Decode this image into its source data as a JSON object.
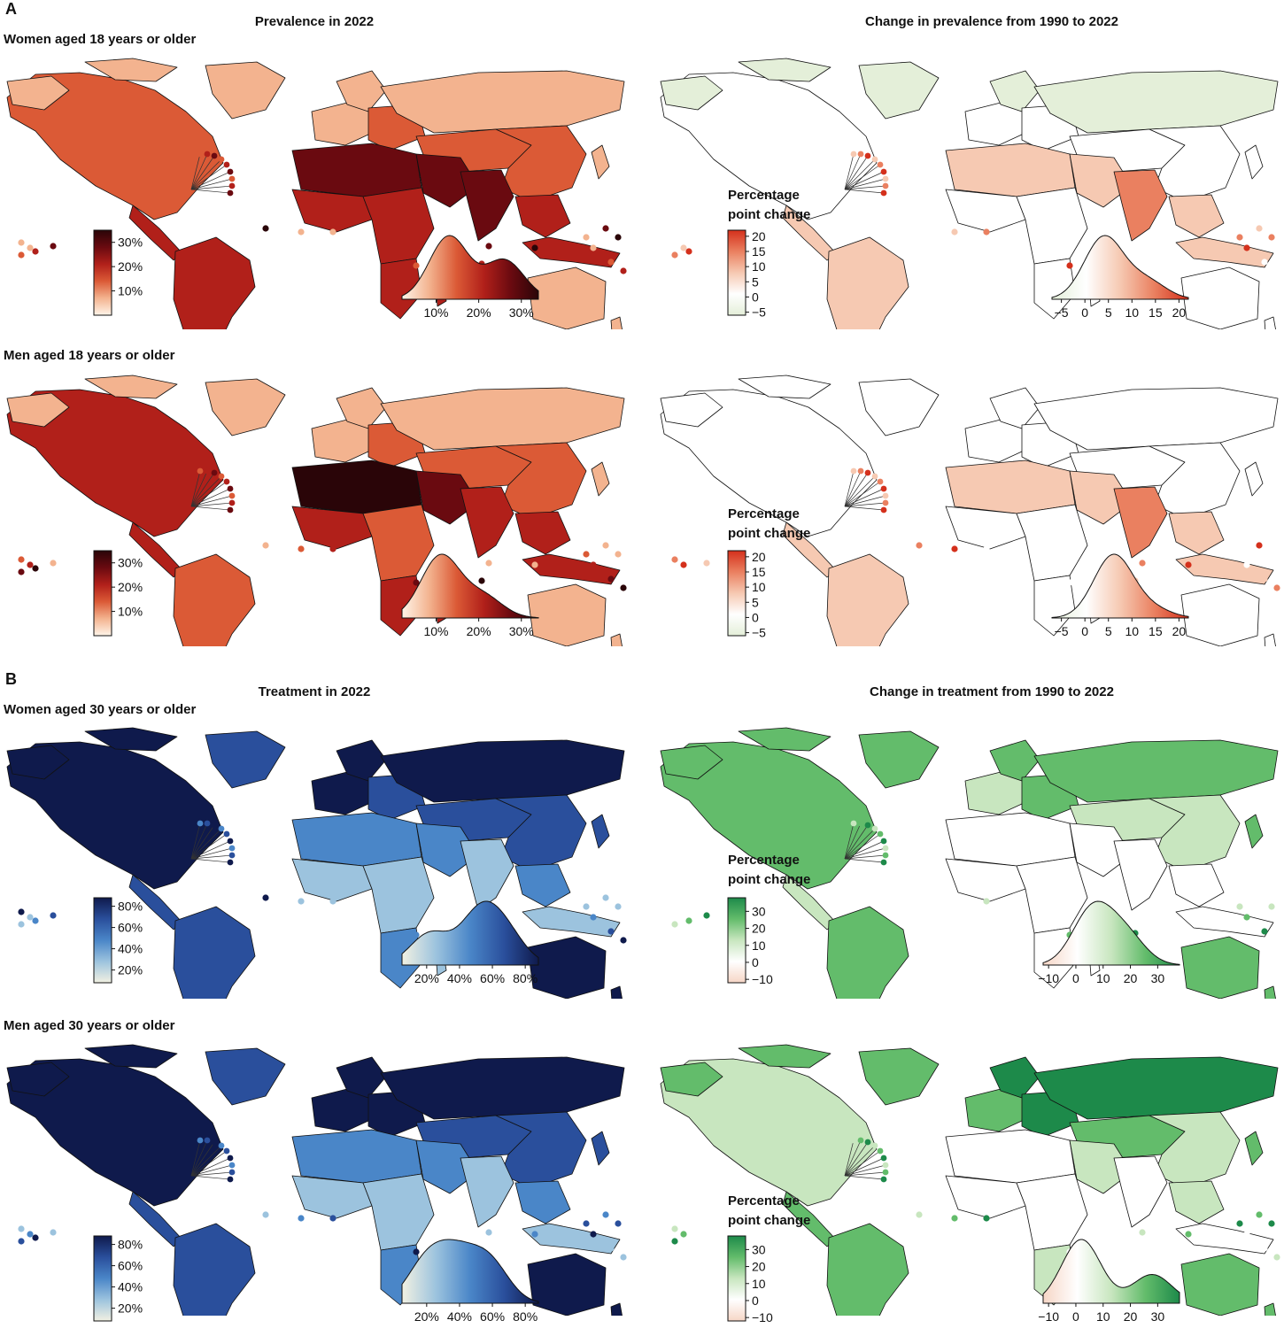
{
  "figure": {
    "panels": [
      {
        "letter": "A",
        "columns": [
          {
            "title": "Prevalence in 2022"
          },
          {
            "title": "Change in prevalence from 1990 to 2022"
          }
        ],
        "rows": [
          {
            "label": "Women aged 18 years or older"
          },
          {
            "label": "Men aged 18 years or older"
          }
        ]
      },
      {
        "letter": "B",
        "columns": [
          {
            "title": "Treatment in 2022"
          },
          {
            "title": "Change in treatment from 1990 to 2022"
          }
        ],
        "rows": [
          {
            "label": "Women aged 30 years or older"
          },
          {
            "label": "Men aged 30 years or older"
          }
        ]
      }
    ],
    "legend_change_title": "Percentage point change"
  },
  "colors": {
    "prevalence": [
      "#fff5e9",
      "#f3b38f",
      "#db5a36",
      "#b1201a",
      "#6a0a10",
      "#2a0508"
    ],
    "prevalence_change": [
      "#e4efd9",
      "#ffffff",
      "#f6c9b2",
      "#ea8060",
      "#d4301c"
    ],
    "treatment": [
      "#f2f1e2",
      "#9cc3de",
      "#4a86c8",
      "#2a4f9c",
      "#0f1a4c"
    ],
    "treatment_change": [
      "#f6d6c6",
      "#ffffff",
      "#c8e6bf",
      "#63bc6b",
      "#1d8a4a"
    ]
  },
  "chart_data": [
    {
      "type": "heatmap",
      "title": "Prevalence in 2022",
      "row_label": "Women aged 18 years or older",
      "legend": {
        "ticks": [
          "10%",
          "20%",
          "30%"
        ],
        "range": [
          0,
          35
        ]
      },
      "density": {
        "x_ticks": [
          "10%",
          "20%",
          "30%"
        ],
        "range": [
          2,
          34
        ],
        "peaks": [
          {
            "x": 13,
            "h": 1.0
          },
          {
            "x": 26,
            "h": 0.62
          }
        ]
      }
    },
    {
      "type": "heatmap",
      "title": "Change in prevalence from 1990 to 2022",
      "row_label": "Women aged 18 years or older",
      "legend": {
        "title": "Percentage point change",
        "ticks": [
          "20",
          "15",
          "10",
          "5",
          "0",
          "−5"
        ],
        "range": [
          -6,
          22
        ]
      },
      "density": {
        "x_ticks": [
          "−5",
          "0",
          "5",
          "10",
          "15",
          "20"
        ],
        "range": [
          -7,
          22
        ],
        "peaks": [
          {
            "x": 4,
            "h": 1.0
          },
          {
            "x": 13,
            "h": 0.3
          }
        ]
      }
    },
    {
      "type": "heatmap",
      "title": "Prevalence in 2022",
      "row_label": "Men aged 18 years or older",
      "legend": {
        "ticks": [
          "10%",
          "20%",
          "30%"
        ],
        "range": [
          0,
          35
        ]
      },
      "density": {
        "x_ticks": [
          "10%",
          "20%",
          "30%"
        ],
        "range": [
          2,
          34
        ],
        "peaks": [
          {
            "x": 11,
            "h": 1.0
          },
          {
            "x": 21,
            "h": 0.35
          }
        ]
      }
    },
    {
      "type": "heatmap",
      "title": "Change in prevalence from 1990 to 2022",
      "row_label": "Men aged 18 years or older",
      "legend": {
        "title": "Percentage point change",
        "ticks": [
          "20",
          "15",
          "10",
          "5",
          "0",
          "−5"
        ],
        "range": [
          -6,
          22
        ]
      },
      "density": {
        "x_ticks": [
          "−5",
          "0",
          "5",
          "10",
          "15",
          "20"
        ],
        "range": [
          -7,
          22
        ],
        "peaks": [
          {
            "x": 6,
            "h": 1.0
          },
          {
            "x": 14,
            "h": 0.15
          }
        ]
      }
    },
    {
      "type": "heatmap",
      "title": "Treatment in 2022",
      "row_label": "Women aged 30 years or older",
      "legend": {
        "ticks": [
          "80%",
          "60%",
          "40%",
          "20%"
        ],
        "range": [
          8,
          88
        ]
      },
      "density": {
        "x_ticks": [
          "20%",
          "40%",
          "60%",
          "80%"
        ],
        "range": [
          5,
          88
        ],
        "peaks": [
          {
            "x": 22,
            "h": 0.65
          },
          {
            "x": 52,
            "h": 1.0
          },
          {
            "x": 68,
            "h": 0.6
          }
        ]
      }
    },
    {
      "type": "heatmap",
      "title": "Change in treatment from 1990 to 2022",
      "row_label": "Women aged 30 years or older",
      "legend": {
        "title": "Percentage point change",
        "ticks": [
          "30",
          "20",
          "10",
          "0",
          "−10"
        ],
        "range": [
          -12,
          38
        ]
      },
      "density": {
        "x_ticks": [
          "−10",
          "0",
          "10",
          "20",
          "30"
        ],
        "range": [
          -12,
          38
        ],
        "peaks": [
          {
            "x": 6,
            "h": 1.0
          },
          {
            "x": 18,
            "h": 0.55
          }
        ]
      }
    },
    {
      "type": "heatmap",
      "title": "Treatment in 2022",
      "row_label": "Men aged 30 years or older",
      "legend": {
        "ticks": [
          "80%",
          "60%",
          "40%",
          "20%"
        ],
        "range": [
          8,
          88
        ]
      },
      "density": {
        "x_ticks": [
          "20%",
          "40%",
          "60%",
          "80%"
        ],
        "range": [
          5,
          88
        ],
        "peaks": [
          {
            "x": 20,
            "h": 0.85
          },
          {
            "x": 38,
            "h": 0.85
          },
          {
            "x": 58,
            "h": 0.85
          }
        ]
      }
    },
    {
      "type": "heatmap",
      "title": "Change in treatment from 1990 to 2022",
      "row_label": "Men aged 30 years or older",
      "legend": {
        "title": "Percentage point change",
        "ticks": [
          "30",
          "20",
          "10",
          "0",
          "−10"
        ],
        "range": [
          -12,
          38
        ]
      },
      "density": {
        "x_ticks": [
          "−10",
          "0",
          "10",
          "20",
          "30"
        ],
        "range": [
          -12,
          38
        ],
        "peaks": [
          {
            "x": 2,
            "h": 1.0
          },
          {
            "x": 28,
            "h": 0.45
          }
        ]
      }
    }
  ]
}
